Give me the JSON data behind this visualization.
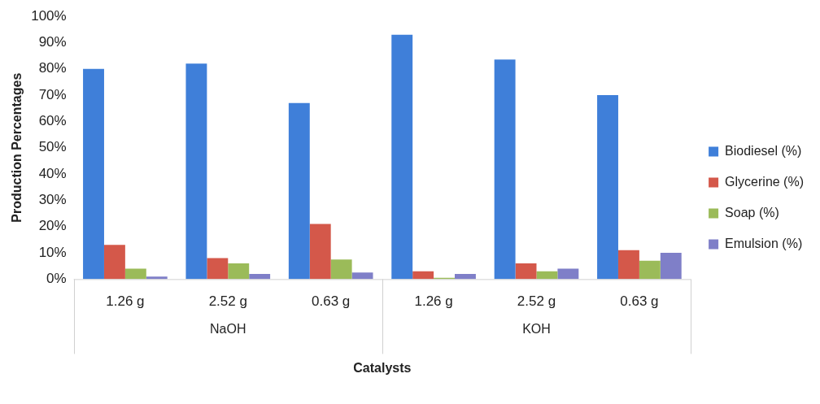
{
  "chart_data": {
    "type": "bar",
    "xlabel": "Catalysts",
    "ylabel": "Production Percentages",
    "categories": [
      "1.26 g",
      "2.52 g",
      "0.63 g",
      "1.26 g",
      "2.52 g",
      "0.63 g"
    ],
    "series": [
      {
        "name": "Biodiesel (%)",
        "color": "#3f7fd9",
        "values": [
          80,
          82,
          67,
          93,
          83.5,
          70
        ]
      },
      {
        "name": "Glycerine (%)",
        "color": "#d4584a",
        "values": [
          13,
          8,
          21,
          3,
          6,
          11
        ]
      },
      {
        "name": "Soap (%)",
        "color": "#9bbb59",
        "values": [
          4,
          6,
          7.5,
          0.5,
          3,
          7
        ]
      },
      {
        "name": "Emulsion (%)",
        "color": "#7f7fc8",
        "values": [
          1,
          2,
          2.5,
          2,
          4,
          10
        ]
      }
    ],
    "annotations": [
      "NaOH",
      "KOH"
    ],
    "ylim": [
      0,
      100
    ],
    "yticks": [
      {
        "value": 0,
        "label": "0%"
      },
      {
        "value": 10,
        "label": "10%"
      },
      {
        "value": 20,
        "label": "20%"
      },
      {
        "value": 30,
        "label": "30%"
      },
      {
        "value": 40,
        "label": "40%"
      },
      {
        "value": 50,
        "label": "50%"
      },
      {
        "value": 60,
        "label": "60%"
      },
      {
        "value": 70,
        "label": "70%"
      },
      {
        "value": 80,
        "label": "80%"
      },
      {
        "value": 90,
        "label": "90%"
      },
      {
        "value": 100,
        "label": "100%"
      }
    ],
    "grid": false,
    "legend": "right"
  }
}
